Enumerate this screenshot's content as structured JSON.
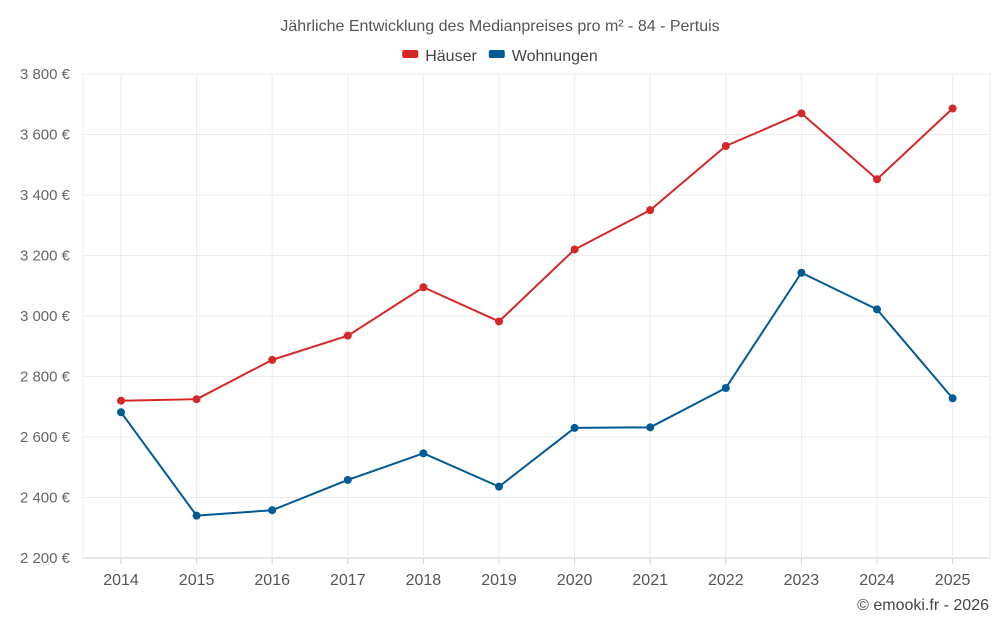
{
  "chart_data": {
    "type": "line",
    "title": "Jährliche Entwicklung des Medianpreises pro m² - 84 - Pertuis",
    "categories": [
      "2014",
      "2015",
      "2016",
      "2017",
      "2018",
      "2019",
      "2020",
      "2021",
      "2022",
      "2023",
      "2024",
      "2025"
    ],
    "series": [
      {
        "name": "Häuser",
        "color": "#d62728",
        "values": [
          2720,
          2725,
          2855,
          2935,
          3095,
          2982,
          3220,
          3350,
          3562,
          3670,
          3452,
          3686
        ]
      },
      {
        "name": "Wohnungen",
        "color": "#005a96",
        "values": [
          2682,
          2340,
          2358,
          2458,
          2546,
          2436,
          2630,
          2632,
          2762,
          3143,
          3022,
          2728
        ]
      }
    ],
    "ylim": [
      2200,
      3800
    ],
    "yticks": [
      2200,
      2400,
      2600,
      2800,
      3000,
      3200,
      3400,
      3600,
      3800
    ],
    "ytick_labels": [
      "2 200 €",
      "2 400 €",
      "2 600 €",
      "2 800 €",
      "3 000 €",
      "3 200 €",
      "3 400 €",
      "3 600 €",
      "3 800 €"
    ],
    "xlabel": "",
    "ylabel": "",
    "grid": true,
    "legend_position": "top-center"
  },
  "credit": "© emooki.fr - 2026"
}
